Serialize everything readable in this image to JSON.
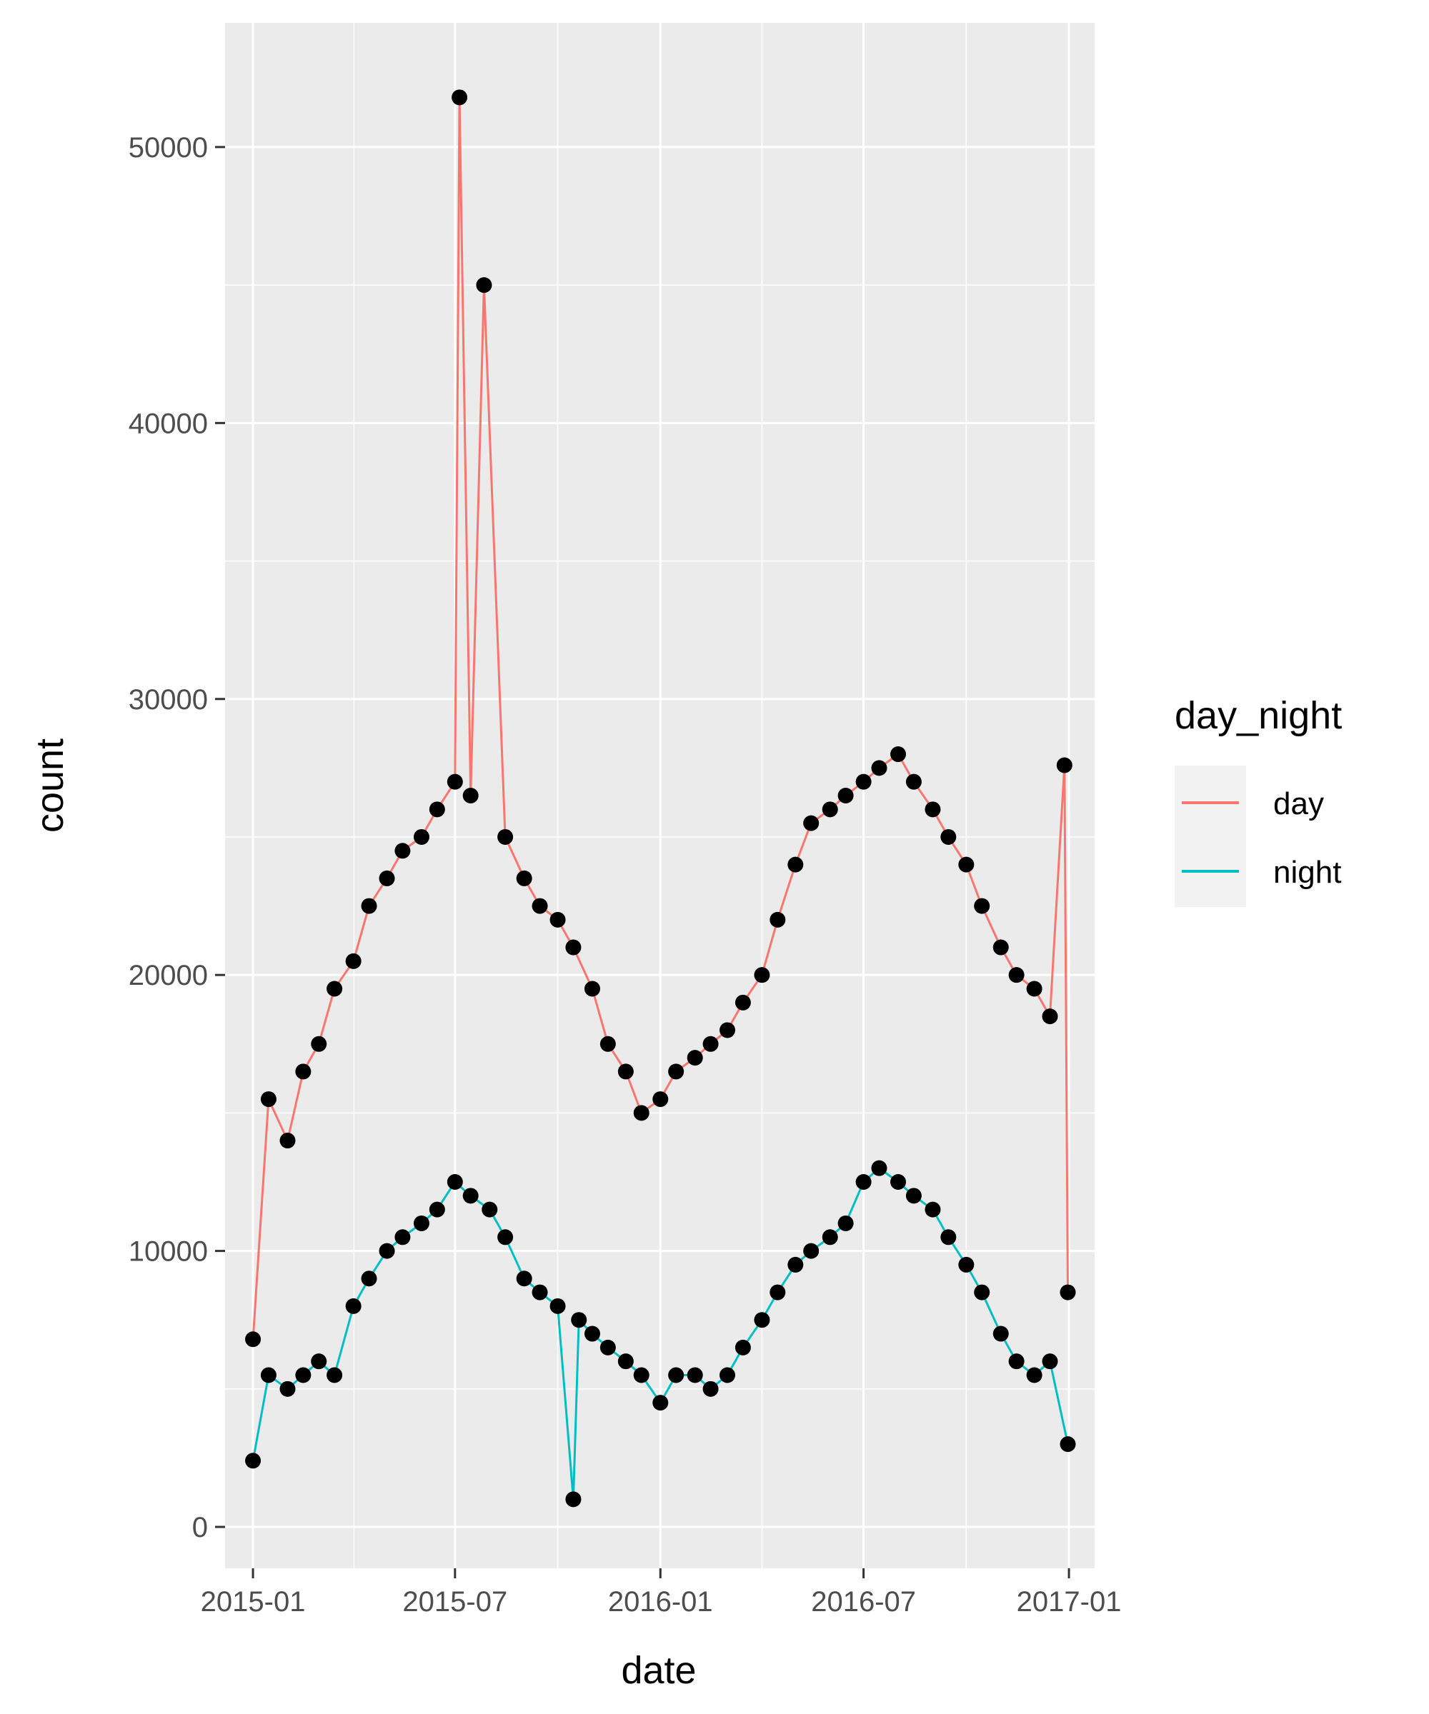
{
  "chart_data": {
    "type": "line",
    "title": "",
    "xlabel": "date",
    "ylabel": "count",
    "x_axis": {
      "type": "date",
      "range": [
        "2014-12-07",
        "2017-01-24"
      ],
      "ticks": [
        "2015-01-01",
        "2015-07-01",
        "2016-01-01",
        "2016-07-01",
        "2017-01-01"
      ],
      "tick_labels": [
        "2015-01",
        "2015-07",
        "2016-01",
        "2016-07",
        "2017-01"
      ]
    },
    "y_axis": {
      "range": [
        -1500,
        54500
      ],
      "ticks": [
        0,
        10000,
        20000,
        30000,
        40000,
        50000
      ],
      "tick_labels": [
        "0",
        "10000",
        "20000",
        "30000",
        "40000",
        "50000"
      ]
    },
    "grid": true,
    "panel_background": "#ebebeb",
    "point_color": "#000000",
    "legend": {
      "title": "day_night",
      "position": "right",
      "entries": [
        {
          "label": "day",
          "color": "#f8766d"
        },
        {
          "label": "night",
          "color": "#00bfc4"
        }
      ]
    },
    "series": [
      {
        "name": "day",
        "color": "#f8766d",
        "points": [
          [
            "2015-01-01",
            6800
          ],
          [
            "2015-01-15",
            15500
          ],
          [
            "2015-02-01",
            14000
          ],
          [
            "2015-02-15",
            16500
          ],
          [
            "2015-03-01",
            17500
          ],
          [
            "2015-03-15",
            19500
          ],
          [
            "2015-04-01",
            20500
          ],
          [
            "2015-04-15",
            22500
          ],
          [
            "2015-05-01",
            23500
          ],
          [
            "2015-05-15",
            24500
          ],
          [
            "2015-06-01",
            25000
          ],
          [
            "2015-06-15",
            26000
          ],
          [
            "2015-07-01",
            27000
          ],
          [
            "2015-07-05",
            51800
          ],
          [
            "2015-07-15",
            26500
          ],
          [
            "2015-07-27",
            45000
          ],
          [
            "2015-08-15",
            25000
          ],
          [
            "2015-09-01",
            23500
          ],
          [
            "2015-09-15",
            22500
          ],
          [
            "2015-10-01",
            22000
          ],
          [
            "2015-10-15",
            21000
          ],
          [
            "2015-11-01",
            19500
          ],
          [
            "2015-11-15",
            17500
          ],
          [
            "2015-12-01",
            16500
          ],
          [
            "2015-12-15",
            15000
          ],
          [
            "2016-01-01",
            15500
          ],
          [
            "2016-01-15",
            16500
          ],
          [
            "2016-02-01",
            17000
          ],
          [
            "2016-02-15",
            17500
          ],
          [
            "2016-03-01",
            18000
          ],
          [
            "2016-03-15",
            19000
          ],
          [
            "2016-04-01",
            20000
          ],
          [
            "2016-04-15",
            22000
          ],
          [
            "2016-05-01",
            24000
          ],
          [
            "2016-05-15",
            25500
          ],
          [
            "2016-06-01",
            26000
          ],
          [
            "2016-06-15",
            26500
          ],
          [
            "2016-07-01",
            27000
          ],
          [
            "2016-07-15",
            27500
          ],
          [
            "2016-08-01",
            28000
          ],
          [
            "2016-08-15",
            27000
          ],
          [
            "2016-09-01",
            26000
          ],
          [
            "2016-09-15",
            25000
          ],
          [
            "2016-10-01",
            24000
          ],
          [
            "2016-10-15",
            22500
          ],
          [
            "2016-11-01",
            21000
          ],
          [
            "2016-11-15",
            20000
          ],
          [
            "2016-12-01",
            19500
          ],
          [
            "2016-12-15",
            18500
          ],
          [
            "2016-12-28",
            27600
          ],
          [
            "2016-12-31",
            8500
          ]
        ]
      },
      {
        "name": "night",
        "color": "#00bfc4",
        "points": [
          [
            "2015-01-01",
            2400
          ],
          [
            "2015-01-15",
            5500
          ],
          [
            "2015-02-01",
            5000
          ],
          [
            "2015-02-15",
            5500
          ],
          [
            "2015-03-01",
            6000
          ],
          [
            "2015-03-15",
            5500
          ],
          [
            "2015-04-01",
            8000
          ],
          [
            "2015-04-15",
            9000
          ],
          [
            "2015-05-01",
            10000
          ],
          [
            "2015-05-15",
            10500
          ],
          [
            "2015-06-01",
            11000
          ],
          [
            "2015-06-15",
            11500
          ],
          [
            "2015-07-01",
            12500
          ],
          [
            "2015-07-15",
            12000
          ],
          [
            "2015-08-01",
            11500
          ],
          [
            "2015-08-15",
            10500
          ],
          [
            "2015-09-01",
            9000
          ],
          [
            "2015-09-15",
            8500
          ],
          [
            "2015-10-01",
            8000
          ],
          [
            "2015-10-15",
            1000
          ],
          [
            "2015-10-20",
            7500
          ],
          [
            "2015-11-01",
            7000
          ],
          [
            "2015-11-15",
            6500
          ],
          [
            "2015-12-01",
            6000
          ],
          [
            "2015-12-15",
            5500
          ],
          [
            "2016-01-01",
            4500
          ],
          [
            "2016-01-15",
            5500
          ],
          [
            "2016-02-01",
            5500
          ],
          [
            "2016-02-15",
            5000
          ],
          [
            "2016-03-01",
            5500
          ],
          [
            "2016-03-15",
            6500
          ],
          [
            "2016-04-01",
            7500
          ],
          [
            "2016-04-15",
            8500
          ],
          [
            "2016-05-01",
            9500
          ],
          [
            "2016-05-15",
            10000
          ],
          [
            "2016-06-01",
            10500
          ],
          [
            "2016-06-15",
            11000
          ],
          [
            "2016-07-01",
            12500
          ],
          [
            "2016-07-15",
            13000
          ],
          [
            "2016-08-01",
            12500
          ],
          [
            "2016-08-15",
            12000
          ],
          [
            "2016-09-01",
            11500
          ],
          [
            "2016-09-15",
            10500
          ],
          [
            "2016-10-01",
            9500
          ],
          [
            "2016-10-15",
            8500
          ],
          [
            "2016-11-01",
            7000
          ],
          [
            "2016-11-15",
            6000
          ],
          [
            "2016-12-01",
            5500
          ],
          [
            "2016-12-15",
            6000
          ],
          [
            "2016-12-31",
            3000
          ]
        ]
      }
    ]
  }
}
